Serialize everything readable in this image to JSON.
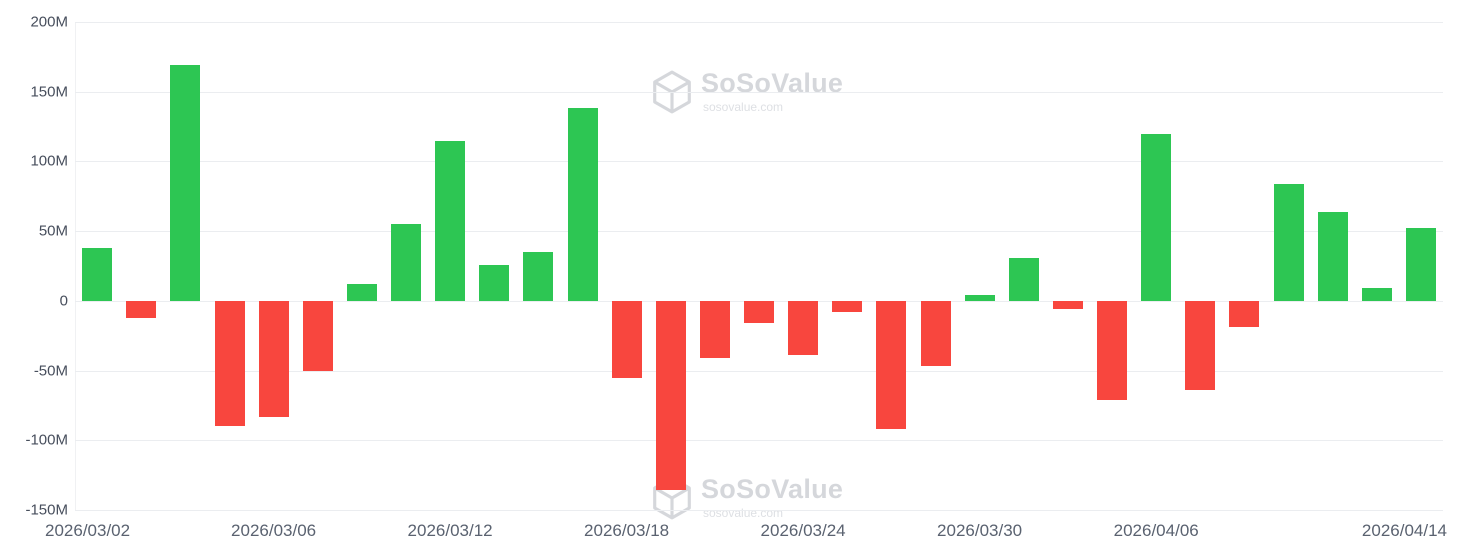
{
  "watermark": {
    "brand": "SoSoValue",
    "domain": "sosovalue.com"
  },
  "chart_data": {
    "type": "bar",
    "title": "",
    "xlabel": "",
    "ylabel": "",
    "unit": "M",
    "grid": "horizontal",
    "legend": "none",
    "positive_color": "#2dc653",
    "negative_color": "#f8463e",
    "gridline_color": "#ebedf0",
    "ylim": [
      -150,
      200
    ],
    "y_ticks": [
      {
        "value": 200,
        "label": "200M"
      },
      {
        "value": 150,
        "label": "150M"
      },
      {
        "value": 100,
        "label": "100M"
      },
      {
        "value": 50,
        "label": "50M"
      },
      {
        "value": 0,
        "label": "0"
      },
      {
        "value": -50,
        "label": "-50M"
      },
      {
        "value": -100,
        "label": "-100M"
      },
      {
        "value": -150,
        "label": "-150M"
      }
    ],
    "x": [
      "2026/03/02",
      "2026/03/03",
      "2026/03/04",
      "2026/03/05",
      "2026/03/06",
      "2026/03/09",
      "2026/03/10",
      "2026/03/11",
      "2026/03/12",
      "2026/03/13",
      "2026/03/16",
      "2026/03/17",
      "2026/03/18",
      "2026/03/19",
      "2026/03/20",
      "2026/03/23",
      "2026/03/24",
      "2026/03/25",
      "2026/03/26",
      "2026/03/27",
      "2026/03/30",
      "2026/03/31",
      "2026/04/01",
      "2026/04/02",
      "2026/04/06",
      "2026/04/07",
      "2026/04/08",
      "2026/04/09",
      "2026/04/10",
      "2026/04/13",
      "2026/04/14"
    ],
    "values": [
      38,
      -12,
      169,
      -90,
      -83,
      -50,
      12,
      55,
      115,
      26,
      35,
      138,
      -55,
      -136,
      -41,
      -16,
      -39,
      -8,
      -92,
      -47,
      4,
      31,
      -6,
      -71,
      120,
      -64,
      -19,
      84,
      64,
      9,
      52
    ],
    "x_axis_labels": [
      {
        "label": "2026/03/02",
        "index": 0
      },
      {
        "label": "2026/03/06",
        "index": 4
      },
      {
        "label": "2026/03/12",
        "index": 8
      },
      {
        "label": "2026/03/18",
        "index": 12
      },
      {
        "label": "2026/03/24",
        "index": 16
      },
      {
        "label": "2026/03/30",
        "index": 20
      },
      {
        "label": "2026/04/06",
        "index": 24
      },
      {
        "label": "2026/04/14",
        "index": 30
      }
    ]
  }
}
